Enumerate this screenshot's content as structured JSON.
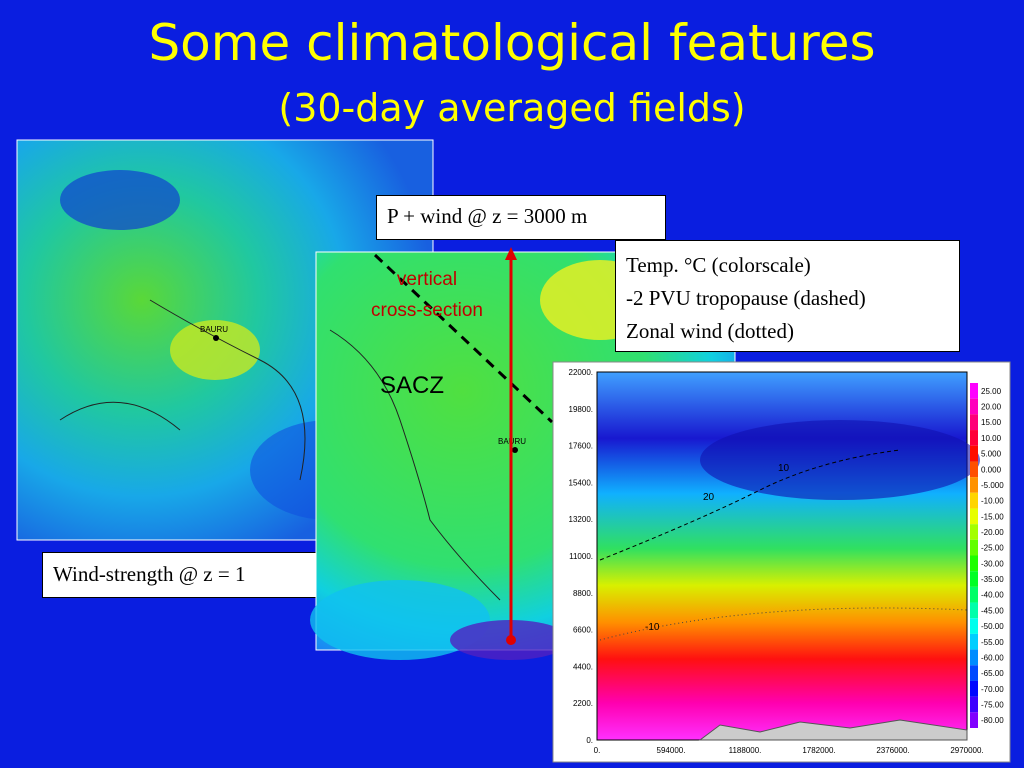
{
  "slide": {
    "title": "Some climatological features",
    "subtitle": "(30-day averaged fields)",
    "left_panel": {
      "caption": "Wind-strength @ z = 1",
      "city": "BAURU"
    },
    "middle_panel": {
      "caption": "P + wind @ z = 3000 m",
      "city": "BAURU",
      "section_label_1": "vertical",
      "section_label_2": "cross-section",
      "region": "SACZ"
    },
    "right_panel": {
      "legend": [
        "Temp. °C (colorscale)",
        "-2 PVU tropopause (dashed)",
        "Zonal wind (dotted)"
      ],
      "y_ticks": [
        "22000.",
        "19800.",
        "17600.",
        "15400.",
        "13200.",
        "11000.",
        "8800.",
        "6600.",
        "4400.",
        "2200.",
        "0."
      ],
      "x_ticks": [
        "0.",
        "594000.",
        "1188000.",
        "1782000.",
        "2376000.",
        "2970000."
      ],
      "colorbar": [
        "25.00",
        "20.00",
        "15.00",
        "10.00",
        "5.000",
        "0.000",
        "-5.000",
        "-10.00",
        "-15.00",
        "-20.00",
        "-25.00",
        "-30.00",
        "-35.00",
        "-40.00",
        "-45.00",
        "-50.00",
        "-55.00",
        "-60.00",
        "-65.00",
        "-70.00",
        "-75.00",
        "-80.00"
      ],
      "contour_labels": [
        "10",
        "20",
        "-10"
      ]
    }
  }
}
